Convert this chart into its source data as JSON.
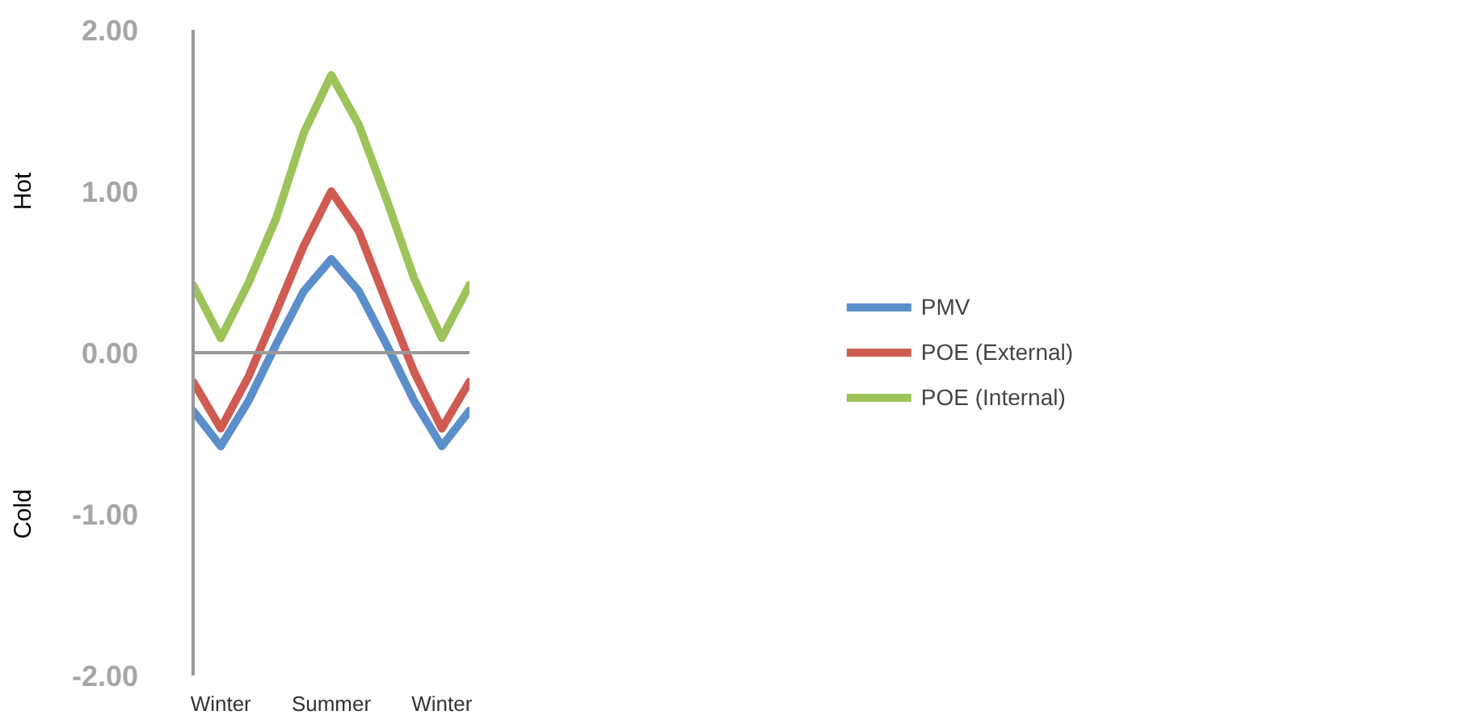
{
  "chart_data": {
    "type": "line",
    "categories": [
      null,
      "Winter",
      null,
      null,
      null,
      "Summer",
      null,
      null,
      null,
      "Winter",
      null
    ],
    "series": [
      {
        "name": "PMV",
        "color": "#5b8fcc",
        "values": [
          -0.36,
          -0.58,
          -0.3,
          0.05,
          0.38,
          0.58,
          0.38,
          0.05,
          -0.3,
          -0.58,
          -0.36
        ]
      },
      {
        "name": "POE (External)",
        "color": "#cf5b52",
        "values": [
          -0.18,
          -0.47,
          -0.15,
          0.25,
          0.66,
          1.0,
          0.75,
          0.31,
          -0.12,
          -0.47,
          -0.18
        ]
      },
      {
        "name": "POE (Internal)",
        "color": "#9dc35a",
        "values": [
          0.42,
          0.09,
          0.43,
          0.83,
          1.36,
          1.72,
          1.41,
          0.95,
          0.46,
          0.09,
          0.42
        ]
      }
    ],
    "ylim": [
      -2,
      2
    ],
    "yticks": [
      {
        "value": -2,
        "label": "-2.00"
      },
      {
        "value": -1,
        "label": "-1.00"
      },
      {
        "value": 0,
        "label": "0.00"
      },
      {
        "value": 1,
        "label": "1.00"
      },
      {
        "value": 2,
        "label": "2.00"
      }
    ],
    "ref_lines": [
      {
        "axis": "y",
        "value": 0,
        "color": "#999999"
      }
    ],
    "annotations": [
      "Hot",
      "Cold"
    ],
    "grid": false,
    "legend": "right",
    "marker": "none",
    "line_style": "solid"
  }
}
